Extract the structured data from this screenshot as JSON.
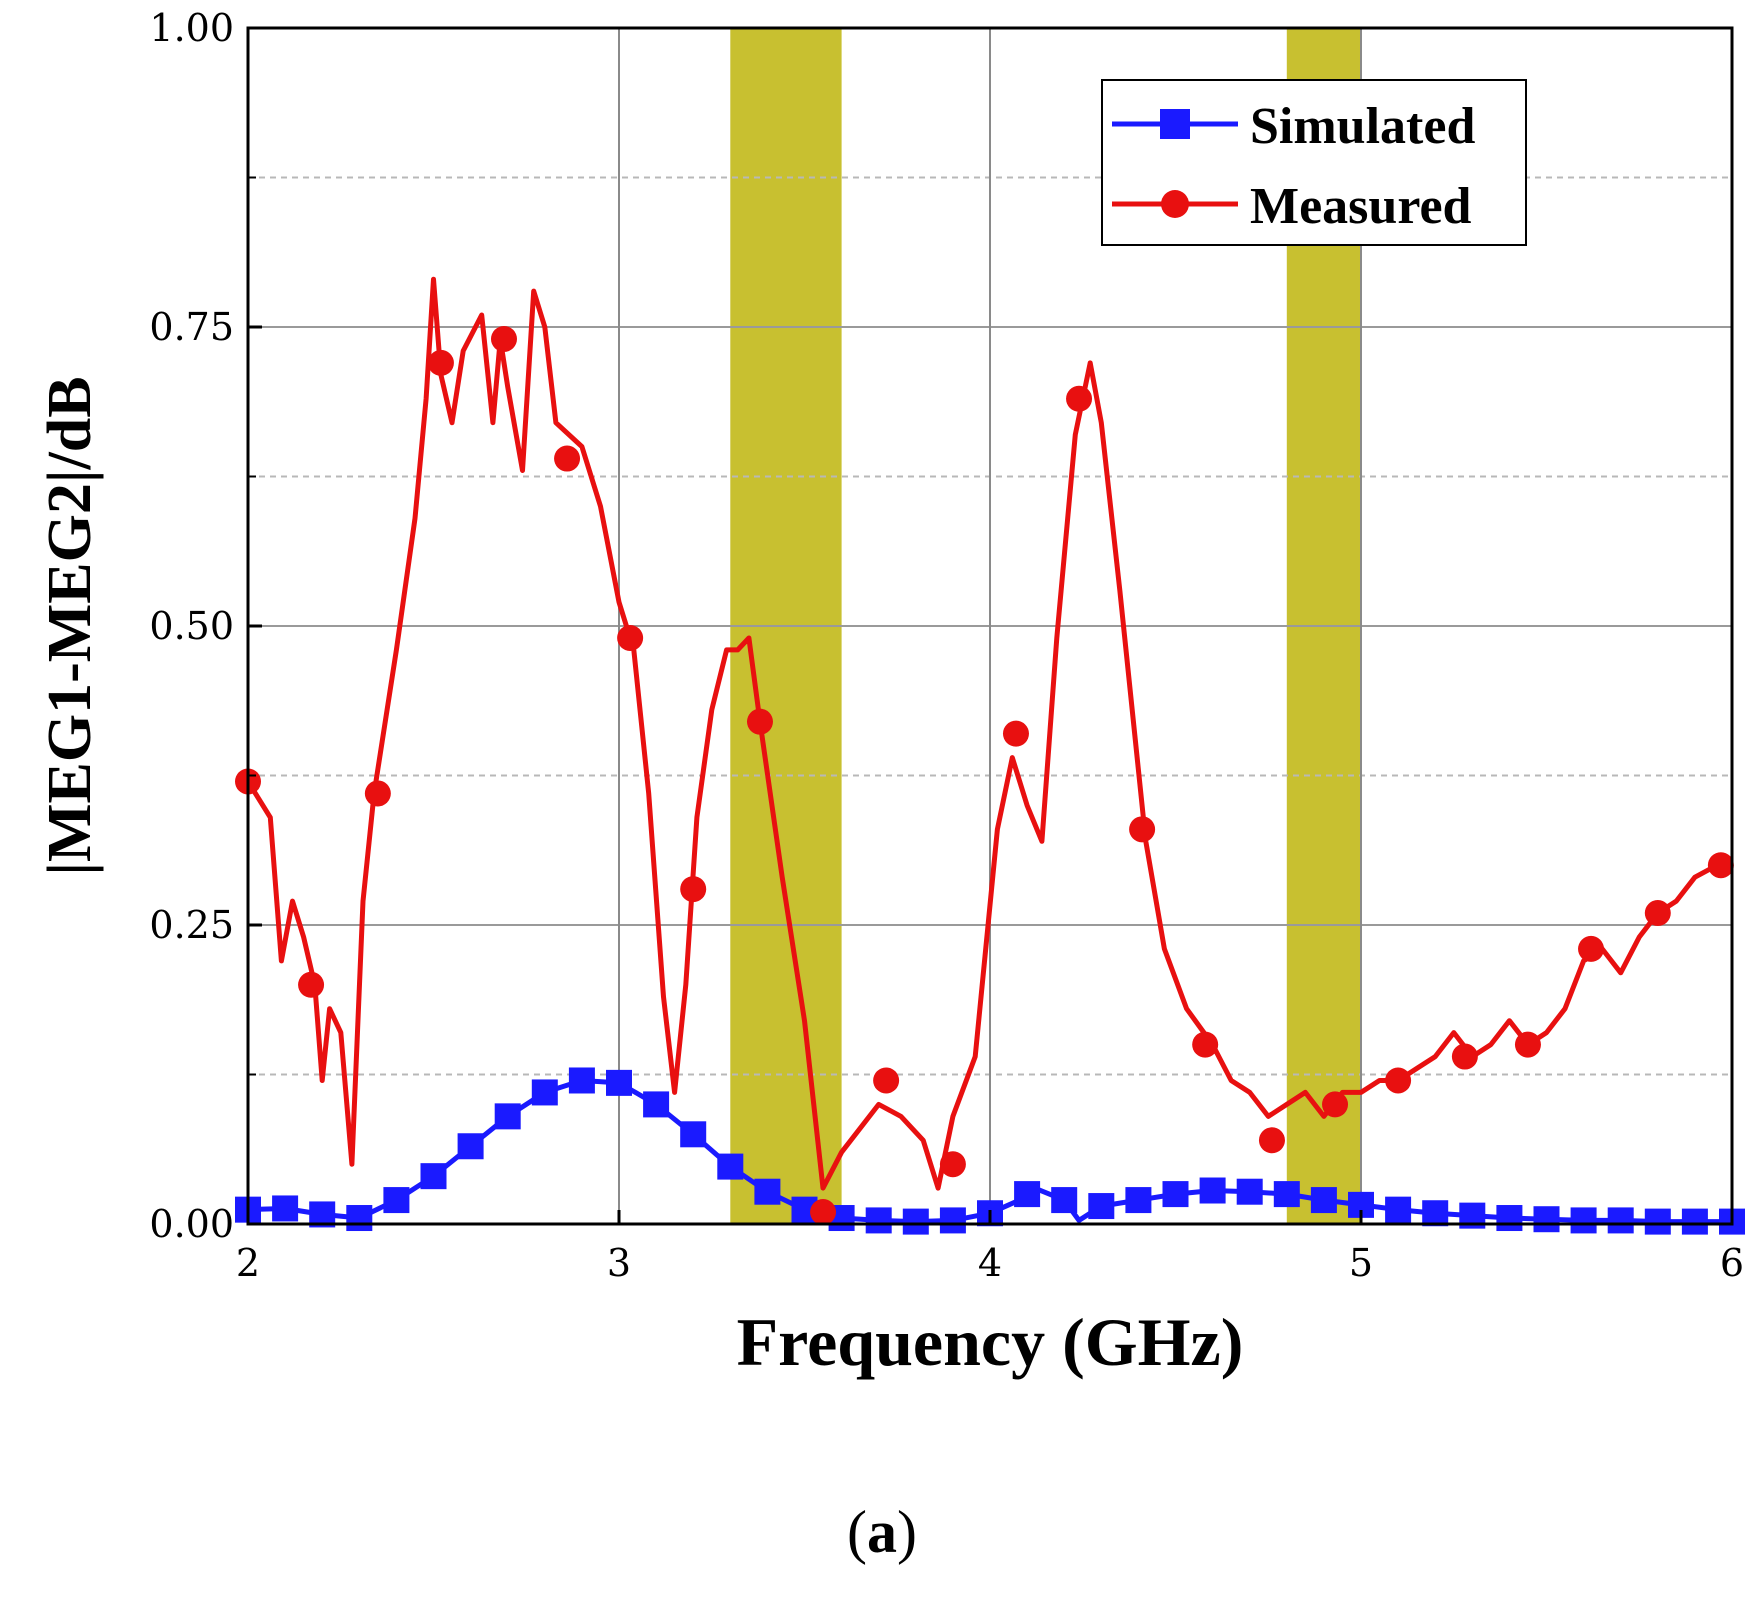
{
  "chart_data": {
    "type": "line",
    "xlabel": "Frequency (GHz)",
    "ylabel": "|MEG1-MEG2|/dB",
    "caption": {
      "open": "(",
      "letter": "a",
      "close": ")"
    },
    "xlim": [
      2,
      6
    ],
    "ylim": [
      0,
      1
    ],
    "x_ticks": [
      "2",
      "3",
      "4",
      "5",
      "6"
    ],
    "y_ticks": [
      "0.00",
      "0.25",
      "0.50",
      "0.75",
      "1.00"
    ],
    "minor_grid_y": [
      0.125,
      0.375,
      0.625,
      0.875
    ],
    "bands": [
      [
        3.3,
        3.6
      ],
      [
        4.8,
        5.0
      ]
    ],
    "legend": {
      "position": "top-right"
    },
    "colors": {
      "simulated": "#1a1aff",
      "measured": "#e81010",
      "band": "#c8c030"
    },
    "series": [
      {
        "name": "Simulated",
        "marker": "square",
        "points": [
          [
            2.0,
            0.012
          ],
          [
            2.1,
            0.013
          ],
          [
            2.2,
            0.008
          ],
          [
            2.3,
            0.005
          ],
          [
            2.4,
            0.02
          ],
          [
            2.5,
            0.04
          ],
          [
            2.6,
            0.065
          ],
          [
            2.7,
            0.09
          ],
          [
            2.8,
            0.11
          ],
          [
            2.9,
            0.12
          ],
          [
            3.0,
            0.118
          ],
          [
            3.1,
            0.1
          ],
          [
            3.2,
            0.075
          ],
          [
            3.3,
            0.048
          ],
          [
            3.4,
            0.027
          ],
          [
            3.5,
            0.012
          ],
          [
            3.6,
            0.005
          ],
          [
            3.7,
            0.003
          ],
          [
            3.8,
            0.002
          ],
          [
            3.9,
            0.003
          ],
          [
            4.0,
            0.009
          ],
          [
            4.08,
            0.02
          ],
          [
            4.12,
            0.03
          ],
          [
            4.2,
            0.02
          ],
          [
            4.24,
            0.003
          ],
          [
            4.3,
            0.015
          ],
          [
            4.4,
            0.02
          ],
          [
            4.5,
            0.025
          ],
          [
            4.6,
            0.028
          ],
          [
            4.7,
            0.027
          ],
          [
            4.8,
            0.025
          ],
          [
            4.9,
            0.02
          ],
          [
            5.0,
            0.016
          ],
          [
            5.1,
            0.012
          ],
          [
            5.2,
            0.009
          ],
          [
            5.3,
            0.007
          ],
          [
            5.4,
            0.005
          ],
          [
            5.5,
            0.004
          ],
          [
            5.6,
            0.003
          ],
          [
            5.7,
            0.003
          ],
          [
            5.8,
            0.002
          ],
          [
            5.9,
            0.002
          ],
          [
            6.0,
            0.002
          ]
        ],
        "marker_x": [
          2.0,
          2.1,
          2.2,
          2.3,
          2.4,
          2.5,
          2.6,
          2.7,
          2.8,
          2.9,
          3.0,
          3.1,
          3.2,
          3.3,
          3.4,
          3.5,
          3.6,
          3.7,
          3.8,
          3.9,
          4.0,
          4.1,
          4.2,
          4.3,
          4.4,
          4.5,
          4.6,
          4.7,
          4.8,
          4.9,
          5.0,
          5.1,
          5.2,
          5.3,
          5.4,
          5.5,
          5.6,
          5.7,
          5.8,
          5.9,
          6.0
        ]
      },
      {
        "name": "Measured",
        "marker": "circle",
        "points": [
          [
            2.0,
            0.37
          ],
          [
            2.06,
            0.34
          ],
          [
            2.09,
            0.22
          ],
          [
            2.12,
            0.27
          ],
          [
            2.15,
            0.24
          ],
          [
            2.18,
            0.2
          ],
          [
            2.2,
            0.12
          ],
          [
            2.22,
            0.18
          ],
          [
            2.25,
            0.16
          ],
          [
            2.28,
            0.05
          ],
          [
            2.31,
            0.27
          ],
          [
            2.34,
            0.36
          ],
          [
            2.4,
            0.48
          ],
          [
            2.45,
            0.59
          ],
          [
            2.48,
            0.69
          ],
          [
            2.5,
            0.79
          ],
          [
            2.52,
            0.71
          ],
          [
            2.55,
            0.67
          ],
          [
            2.58,
            0.73
          ],
          [
            2.63,
            0.76
          ],
          [
            2.66,
            0.67
          ],
          [
            2.68,
            0.74
          ],
          [
            2.7,
            0.7
          ],
          [
            2.74,
            0.63
          ],
          [
            2.77,
            0.78
          ],
          [
            2.8,
            0.75
          ],
          [
            2.83,
            0.67
          ],
          [
            2.9,
            0.65
          ],
          [
            2.95,
            0.6
          ],
          [
            3.0,
            0.52
          ],
          [
            3.04,
            0.48
          ],
          [
            3.08,
            0.36
          ],
          [
            3.12,
            0.19
          ],
          [
            3.15,
            0.11
          ],
          [
            3.18,
            0.2
          ],
          [
            3.21,
            0.34
          ],
          [
            3.25,
            0.43
          ],
          [
            3.29,
            0.48
          ],
          [
            3.32,
            0.48
          ],
          [
            3.35,
            0.49
          ],
          [
            3.38,
            0.42
          ],
          [
            3.44,
            0.29
          ],
          [
            3.5,
            0.17
          ],
          [
            3.55,
            0.03
          ],
          [
            3.6,
            0.06
          ],
          [
            3.7,
            0.1
          ],
          [
            3.76,
            0.09
          ],
          [
            3.82,
            0.07
          ],
          [
            3.86,
            0.03
          ],
          [
            3.9,
            0.09
          ],
          [
            3.96,
            0.14
          ],
          [
            4.02,
            0.33
          ],
          [
            4.06,
            0.39
          ],
          [
            4.1,
            0.35
          ],
          [
            4.14,
            0.32
          ],
          [
            4.18,
            0.49
          ],
          [
            4.23,
            0.66
          ],
          [
            4.27,
            0.72
          ],
          [
            4.3,
            0.67
          ],
          [
            4.35,
            0.53
          ],
          [
            4.42,
            0.32
          ],
          [
            4.47,
            0.23
          ],
          [
            4.53,
            0.18
          ],
          [
            4.6,
            0.15
          ],
          [
            4.65,
            0.12
          ],
          [
            4.7,
            0.11
          ],
          [
            4.75,
            0.09
          ],
          [
            4.8,
            0.1
          ],
          [
            4.85,
            0.11
          ],
          [
            4.9,
            0.09
          ],
          [
            4.95,
            0.11
          ],
          [
            5.0,
            0.11
          ],
          [
            5.05,
            0.12
          ],
          [
            5.1,
            0.12
          ],
          [
            5.15,
            0.13
          ],
          [
            5.2,
            0.14
          ],
          [
            5.25,
            0.16
          ],
          [
            5.3,
            0.14
          ],
          [
            5.35,
            0.15
          ],
          [
            5.4,
            0.17
          ],
          [
            5.45,
            0.15
          ],
          [
            5.5,
            0.16
          ],
          [
            5.55,
            0.18
          ],
          [
            5.6,
            0.22
          ],
          [
            5.65,
            0.23
          ],
          [
            5.7,
            0.21
          ],
          [
            5.75,
            0.24
          ],
          [
            5.8,
            0.26
          ],
          [
            5.85,
            0.27
          ],
          [
            5.9,
            0.29
          ],
          [
            5.96,
            0.3
          ],
          [
            6.0,
            0.3
          ]
        ],
        "marker_points": [
          [
            2.0,
            0.37
          ],
          [
            2.17,
            0.2
          ],
          [
            2.35,
            0.36
          ],
          [
            2.52,
            0.72
          ],
          [
            2.69,
            0.74
          ],
          [
            2.86,
            0.64
          ],
          [
            3.03,
            0.49
          ],
          [
            3.2,
            0.28
          ],
          [
            3.38,
            0.42
          ],
          [
            3.55,
            0.01
          ],
          [
            3.72,
            0.12
          ],
          [
            3.9,
            0.05
          ],
          [
            4.07,
            0.41
          ],
          [
            4.24,
            0.69
          ],
          [
            4.41,
            0.33
          ],
          [
            4.58,
            0.15
          ],
          [
            4.76,
            0.07
          ],
          [
            4.93,
            0.1
          ],
          [
            5.1,
            0.12
          ],
          [
            5.28,
            0.14
          ],
          [
            5.45,
            0.15
          ],
          [
            5.62,
            0.23
          ],
          [
            5.8,
            0.26
          ],
          [
            5.97,
            0.3
          ]
        ]
      }
    ]
  }
}
